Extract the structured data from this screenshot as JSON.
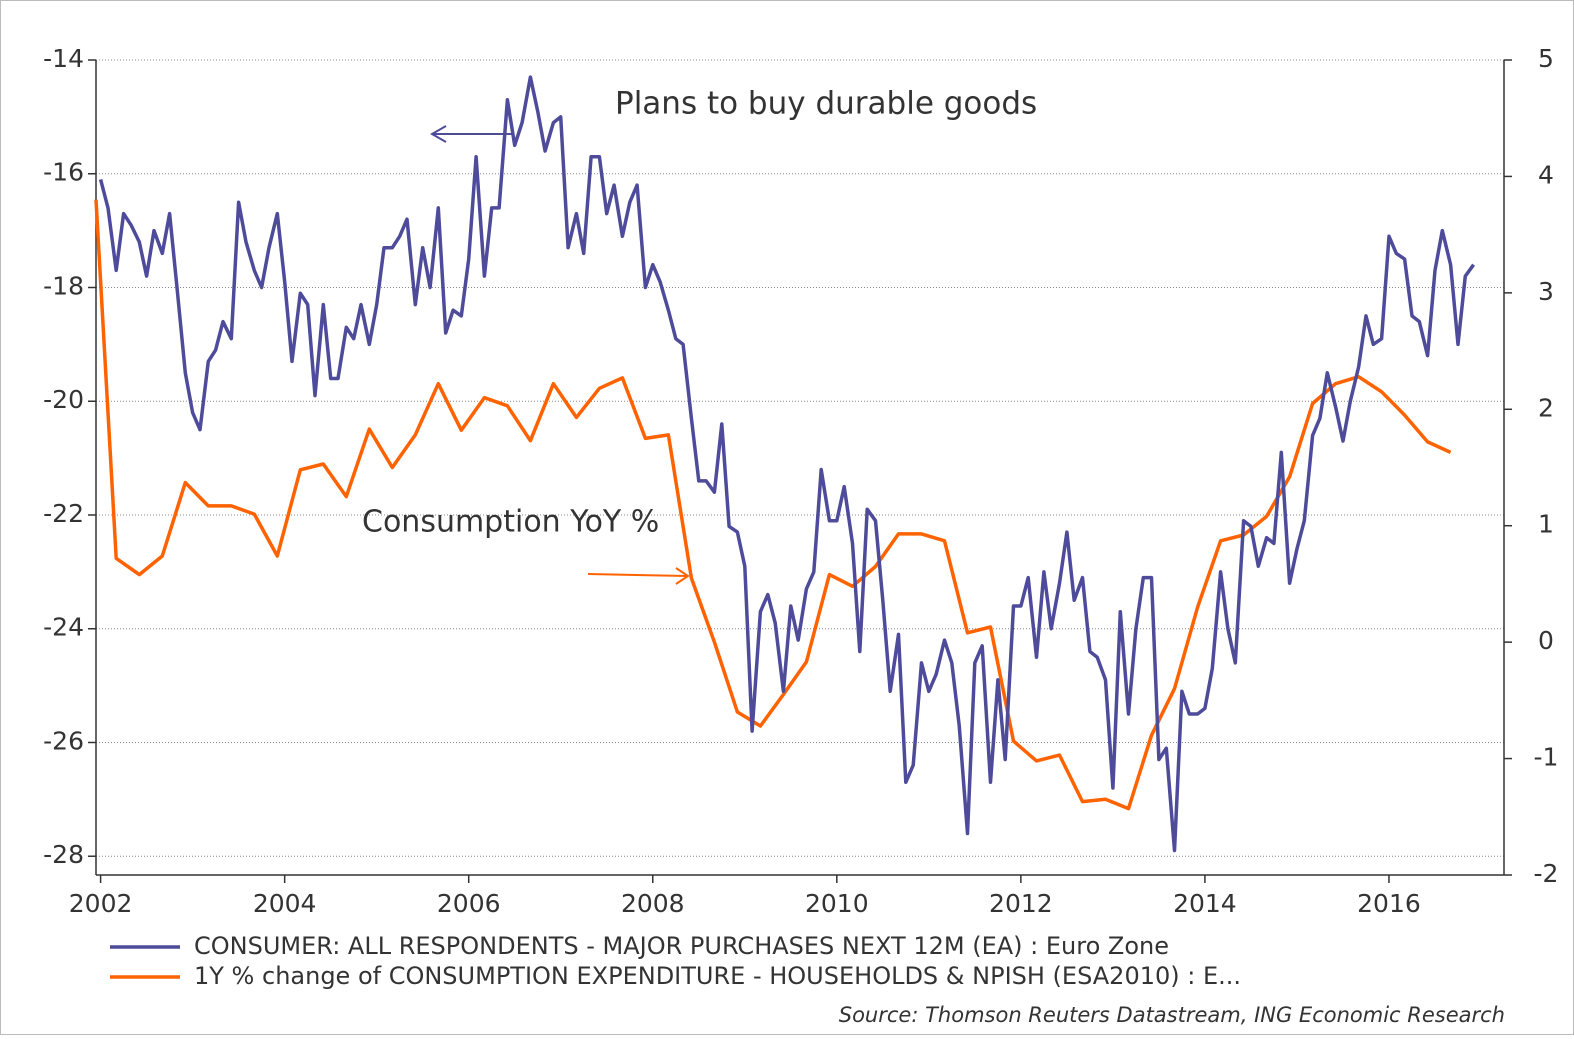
{
  "chart_data": {
    "type": "line",
    "annotations": [
      "Plans to buy durable goods",
      "Consumption YoY %"
    ],
    "source": "Source: Thomson Reuters Datastream, ING Economic Research",
    "xlim": [
      2001.95,
      2017.25
    ],
    "xticks": [
      2002,
      2004,
      2006,
      2008,
      2010,
      2012,
      2014,
      2016
    ],
    "ylim": [
      -28.33,
      -14
    ],
    "yticks": [
      -14,
      -16,
      -18,
      -20,
      -22,
      -24,
      -26,
      -28
    ],
    "y2lim": [
      -2,
      5
    ],
    "y2ticks": [
      5,
      4,
      3,
      2,
      1,
      0,
      -1,
      -2
    ],
    "grid": true,
    "series": [
      {
        "name": "CONSUMER: ALL RESPONDENTS - MAJOR PURCHASES NEXT 12M (EA) : Euro Zone",
        "color": "#4e4b9b",
        "x": [
          2002.0,
          2002.08,
          2002.17,
          2002.25,
          2002.33,
          2002.42,
          2002.5,
          2002.58,
          2002.67,
          2002.75,
          2002.83,
          2002.92,
          2003.0,
          2003.08,
          2003.17,
          2003.25,
          2003.33,
          2003.42,
          2003.5,
          2003.58,
          2003.67,
          2003.75,
          2003.83,
          2003.92,
          2004.0,
          2004.08,
          2004.17,
          2004.25,
          2004.33,
          2004.42,
          2004.5,
          2004.58,
          2004.67,
          2004.75,
          2004.83,
          2004.92,
          2005.0,
          2005.08,
          2005.17,
          2005.25,
          2005.33,
          2005.42,
          2005.5,
          2005.58,
          2005.67,
          2005.75,
          2005.83,
          2005.92,
          2006.0,
          2006.08,
          2006.17,
          2006.25,
          2006.33,
          2006.42,
          2006.5,
          2006.58,
          2006.67,
          2006.75,
          2006.83,
          2006.92,
          2007.0,
          2007.08,
          2007.17,
          2007.25,
          2007.33,
          2007.42,
          2007.5,
          2007.58,
          2007.67,
          2007.75,
          2007.83,
          2007.92,
          2008.0,
          2008.08,
          2008.17,
          2008.25,
          2008.33,
          2008.42,
          2008.5,
          2008.58,
          2008.67,
          2008.75,
          2008.83,
          2008.92,
          2009.0,
          2009.08,
          2009.17,
          2009.25,
          2009.33,
          2009.42,
          2009.5,
          2009.58,
          2009.67,
          2009.75,
          2009.83,
          2009.92,
          2010.0,
          2010.08,
          2010.17,
          2010.25,
          2010.33,
          2010.42,
          2010.5,
          2010.58,
          2010.67,
          2010.75,
          2010.83,
          2010.92,
          2011.0,
          2011.08,
          2011.17,
          2011.25,
          2011.33,
          2011.42,
          2011.5,
          2011.58,
          2011.67,
          2011.75,
          2011.83,
          2011.92,
          2012.0,
          2012.08,
          2012.17,
          2012.25,
          2012.33,
          2012.42,
          2012.5,
          2012.58,
          2012.67,
          2012.75,
          2012.83,
          2012.92,
          2013.0,
          2013.08,
          2013.17,
          2013.25,
          2013.33,
          2013.42,
          2013.5,
          2013.58,
          2013.67,
          2013.75,
          2013.83,
          2013.92,
          2014.0,
          2014.08,
          2014.17,
          2014.25,
          2014.33,
          2014.42,
          2014.5,
          2014.58,
          2014.67,
          2014.75,
          2014.83,
          2014.92,
          2015.0,
          2015.08,
          2015.17,
          2015.25,
          2015.33,
          2015.42,
          2015.5,
          2015.58,
          2015.67,
          2015.75,
          2015.83,
          2015.92,
          2016.0,
          2016.08,
          2016.17,
          2016.25,
          2016.33,
          2016.42,
          2016.5,
          2016.58,
          2016.67,
          2016.75,
          2016.83,
          2016.92
        ],
        "values": [
          -16.1,
          -16.6,
          -17.7,
          -16.7,
          -16.9,
          -17.2,
          -17.8,
          -17.0,
          -17.4,
          -16.7,
          -18.0,
          -19.5,
          -20.2,
          -20.5,
          -19.3,
          -19.1,
          -18.6,
          -18.9,
          -16.5,
          -17.2,
          -17.7,
          -18.0,
          -17.3,
          -16.7,
          -17.9,
          -19.3,
          -18.1,
          -18.3,
          -19.9,
          -18.3,
          -19.6,
          -19.6,
          -18.7,
          -18.9,
          -18.3,
          -19.0,
          -18.3,
          -17.3,
          -17.3,
          -17.1,
          -16.8,
          -18.3,
          -17.3,
          -18.0,
          -16.6,
          -18.8,
          -18.4,
          -18.5,
          -17.5,
          -15.7,
          -17.8,
          -16.6,
          -16.6,
          -14.7,
          -15.5,
          -15.1,
          -14.3,
          -14.9,
          -15.6,
          -15.1,
          -15.0,
          -17.3,
          -16.7,
          -17.4,
          -15.7,
          -15.7,
          -16.7,
          -16.2,
          -17.1,
          -16.5,
          -16.2,
          -18.0,
          -17.6,
          -17.9,
          -18.4,
          -18.9,
          -19.0,
          -20.3,
          -21.4,
          -21.4,
          -21.6,
          -20.4,
          -22.2,
          -22.3,
          -22.9,
          -25.8,
          -23.7,
          -23.4,
          -23.9,
          -25.1,
          -23.6,
          -24.2,
          -23.3,
          -23.0,
          -21.2,
          -22.1,
          -22.1,
          -21.5,
          -22.5,
          -24.4,
          -21.9,
          -22.1,
          -23.5,
          -25.1,
          -24.1,
          -26.7,
          -26.4,
          -24.6,
          -25.1,
          -24.8,
          -24.2,
          -24.6,
          -25.7,
          -27.6,
          -24.6,
          -24.3,
          -26.7,
          -24.9,
          -26.3,
          -23.6,
          -23.6,
          -23.1,
          -24.5,
          -23.0,
          -24.0,
          -23.2,
          -22.3,
          -23.5,
          -23.1,
          -24.4,
          -24.5,
          -24.9,
          -26.8,
          -23.7,
          -25.5,
          -24.0,
          -23.1,
          -23.1,
          -26.3,
          -26.1,
          -27.9,
          -25.1,
          -25.5,
          -25.5,
          -25.4,
          -24.7,
          -23.0,
          -24.0,
          -24.6,
          -22.1,
          -22.2,
          -22.9,
          -22.4,
          -22.5,
          -20.9,
          -23.2,
          -22.6,
          -22.1,
          -20.6,
          -20.3,
          -19.5,
          -20.1,
          -20.7,
          -20.0,
          -19.4,
          -18.5,
          -19.0,
          -18.9,
          -17.1,
          -17.4,
          -17.5,
          -18.5,
          -18.6,
          -19.2,
          -17.7,
          -17.0,
          -17.6,
          -19.0,
          -17.8,
          -17.6
        ]
      },
      {
        "name": "1Y % change of CONSUMPTION EXPENDITURE - HOUSEHOLDS & NPISH (ESA2010) : E...",
        "color": "#ff6200",
        "axis": "y2",
        "x": [
          2001.95,
          2002.17,
          2002.42,
          2002.67,
          2002.92,
          2003.17,
          2003.42,
          2003.67,
          2003.92,
          2004.17,
          2004.42,
          2004.67,
          2004.92,
          2005.17,
          2005.42,
          2005.67,
          2005.92,
          2006.17,
          2006.42,
          2006.67,
          2006.92,
          2007.17,
          2007.42,
          2007.67,
          2007.92,
          2008.17,
          2008.42,
          2008.67,
          2008.92,
          2009.17,
          2009.42,
          2009.67,
          2009.92,
          2010.17,
          2010.42,
          2010.67,
          2010.92,
          2011.17,
          2011.42,
          2011.67,
          2011.92,
          2012.17,
          2012.42,
          2012.67,
          2012.92,
          2013.17,
          2013.42,
          2013.67,
          2013.92,
          2014.17,
          2014.42,
          2014.67,
          2014.92,
          2015.17,
          2015.42,
          2015.67,
          2015.92,
          2016.17,
          2016.42,
          2016.67
        ],
        "values": [
          3.8,
          0.72,
          0.58,
          0.74,
          1.37,
          1.17,
          1.17,
          1.1,
          0.74,
          1.48,
          1.53,
          1.25,
          1.83,
          1.5,
          1.78,
          2.22,
          1.82,
          2.1,
          2.03,
          1.73,
          2.22,
          1.93,
          2.18,
          2.27,
          1.75,
          1.78,
          0.55,
          0.0,
          -0.6,
          -0.72,
          -0.45,
          -0.17,
          0.58,
          0.48,
          0.65,
          0.93,
          0.93,
          0.87,
          0.08,
          0.13,
          -0.85,
          -1.02,
          -0.97,
          -1.37,
          -1.35,
          -1.43,
          -0.8,
          -0.4,
          0.3,
          0.87,
          0.92,
          1.08,
          1.42,
          2.05,
          2.22,
          2.28,
          2.15,
          1.95,
          1.72,
          1.63
        ]
      }
    ]
  }
}
